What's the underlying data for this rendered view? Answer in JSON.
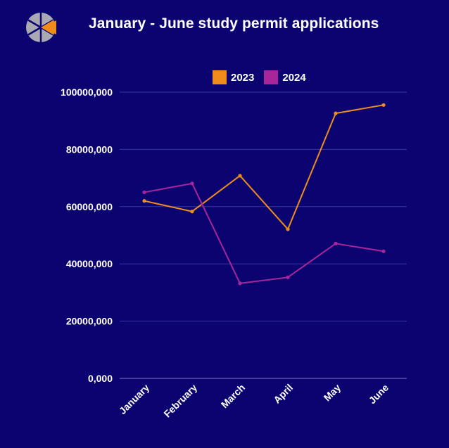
{
  "title": "January - June study permit applications",
  "legend": [
    {
      "label": "2023",
      "color": "#f08c1c"
    },
    {
      "label": "2024",
      "color": "#a8259a"
    }
  ],
  "logo_icon": "logo-pie-icon",
  "chart_data": {
    "type": "line",
    "title": "January - June study permit applications",
    "xlabel": "",
    "ylabel": "",
    "categories": [
      "January",
      "February",
      "March",
      "April",
      "May",
      "June"
    ],
    "series": [
      {
        "name": "2023",
        "color": "#f08c1c",
        "values": [
          62000000,
          58300000,
          70800000,
          52100000,
          92600000,
          95500000
        ]
      },
      {
        "name": "2024",
        "color": "#a8259a",
        "values": [
          65000000,
          68100000,
          33200000,
          35300000,
          47100000,
          44400000
        ]
      }
    ],
    "ylim": [
      0,
      100000000
    ],
    "yticks": [
      0,
      20000000,
      40000000,
      60000000,
      80000000,
      100000000
    ],
    "ytick_labels": [
      "0,000",
      "20000,000",
      "40000,000",
      "60000,000",
      "80000,000",
      "100000,000"
    ],
    "grid": true,
    "legend_position": "top-center"
  }
}
